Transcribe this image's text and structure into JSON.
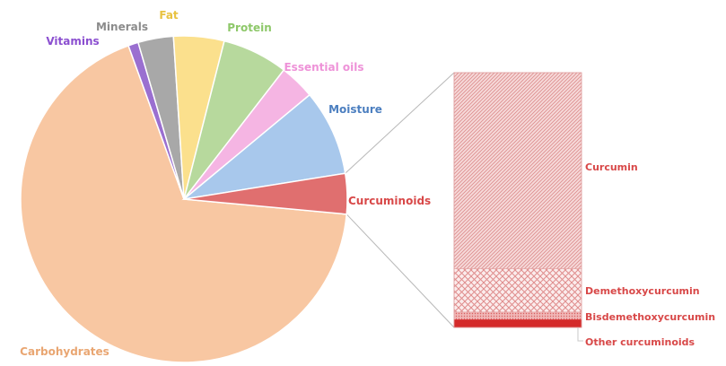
{
  "chart_data": [
    {
      "type": "pie",
      "title": "",
      "slices": [
        {
          "label": "Carbohydrates",
          "value": 68.0,
          "color": "#f8c7a2"
        },
        {
          "label": "Vitamins",
          "value": 1.0,
          "color": "#9a6fd0"
        },
        {
          "label": "Minerals",
          "value": 3.5,
          "color": "#a8a8a8"
        },
        {
          "label": "Fat",
          "value": 5.0,
          "color": "#fbe08d"
        },
        {
          "label": "Protein",
          "value": 6.5,
          "color": "#b7d99d"
        },
        {
          "label": "Essential oils",
          "value": 3.5,
          "color": "#f5b5e3"
        },
        {
          "label": "Moisture",
          "value": 8.5,
          "color": "#a8c8ec"
        },
        {
          "label": "Curcuminoids",
          "value": 4.0,
          "color": "#e06f6f"
        }
      ],
      "label_colors": {
        "Carbohydrates": "#e9a672",
        "Vitamins": "#8b4fd0",
        "Minerals": "#8c8c8c",
        "Fat": "#e8c240",
        "Protein": "#8ec86a",
        "Essential oils": "#ee92d8",
        "Moisture": "#4c7fc0",
        "Curcuminoids": "#d84848"
      }
    },
    {
      "type": "bar",
      "stacked": true,
      "breakdown_of": "Curcuminoids",
      "segments": [
        {
          "label": "Curcumin",
          "value": 77.0,
          "color": "#e8a8a8",
          "pattern": "diagonal"
        },
        {
          "label": "Demethoxycurcumin",
          "value": 17.0,
          "color": "#e8a8a8",
          "pattern": "cross"
        },
        {
          "label": "Bisdemethoxycurcumin",
          "value": 3.0,
          "color": "#e8a8a8",
          "pattern": "dots"
        },
        {
          "label": "Other curcuminoids",
          "value": 3.0,
          "color": "#d42a2a",
          "pattern": "solid"
        }
      ],
      "label_color": "#d84848"
    }
  ]
}
